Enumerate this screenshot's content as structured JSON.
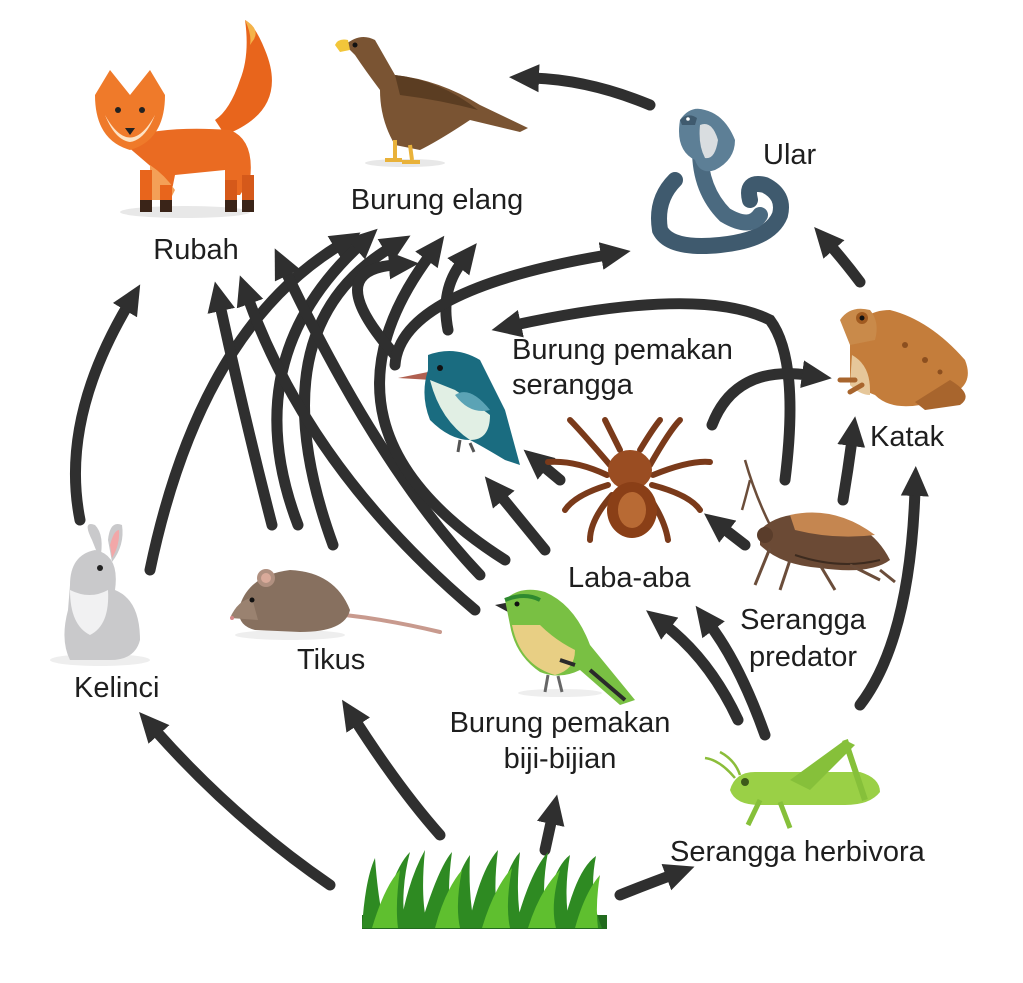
{
  "diagram": {
    "type": "food-web",
    "colors": {
      "arrow": "#2f2f2f",
      "label": "#1e1e1e",
      "background": "#ffffff"
    },
    "nodes": [
      {
        "id": "rubah",
        "label": "Rubah",
        "icon": "fox-icon"
      },
      {
        "id": "elang",
        "label": "Burung elang",
        "icon": "eagle-icon"
      },
      {
        "id": "ular",
        "label": "Ular",
        "icon": "cobra-icon"
      },
      {
        "id": "katak",
        "label": "Katak",
        "icon": "frog-icon"
      },
      {
        "id": "burung_serangga",
        "label_line1": "Burung pemakan",
        "label_line2": "serangga",
        "icon": "insectivore-bird-icon"
      },
      {
        "id": "laba",
        "label": "Laba-aba",
        "icon": "spider-icon"
      },
      {
        "id": "serangga_predator",
        "label_line1": "Serangga",
        "label_line2": "predator",
        "icon": "predatory-insect-icon"
      },
      {
        "id": "kelinci",
        "label": "Kelinci",
        "icon": "rabbit-icon"
      },
      {
        "id": "tikus",
        "label": "Tikus",
        "icon": "mouse-icon"
      },
      {
        "id": "burung_biji",
        "label_line1": "Burung pemakan",
        "label_line2": "biji-bijian",
        "icon": "seed-bird-icon"
      },
      {
        "id": "serangga_herbivora",
        "label": "Serangga herbivora",
        "icon": "grasshopper-icon"
      },
      {
        "id": "rumput",
        "label": "",
        "icon": "grass-icon"
      }
    ],
    "edges": [
      {
        "from": "rumput",
        "to": "kelinci"
      },
      {
        "from": "rumput",
        "to": "tikus"
      },
      {
        "from": "rumput",
        "to": "burung_biji"
      },
      {
        "from": "rumput",
        "to": "serangga_herbivora"
      },
      {
        "from": "kelinci",
        "to": "rubah"
      },
      {
        "from": "kelinci",
        "to": "elang"
      },
      {
        "from": "tikus",
        "to": "rubah"
      },
      {
        "from": "tikus",
        "to": "elang"
      },
      {
        "from": "burung_biji",
        "to": "rubah"
      },
      {
        "from": "burung_biji",
        "to": "elang"
      },
      {
        "from": "burung_serangga",
        "to": "elang"
      },
      {
        "from": "burung_serangga",
        "to": "ular"
      },
      {
        "from": "laba",
        "to": "burung_serangga"
      },
      {
        "from": "laba",
        "to": "katak"
      },
      {
        "from": "serangga_predator",
        "to": "laba"
      },
      {
        "from": "serangga_predator",
        "to": "burung_serangga"
      },
      {
        "from": "serangga_predator",
        "to": "katak"
      },
      {
        "from": "serangga_herbivora",
        "to": "laba"
      },
      {
        "from": "serangga_herbivora",
        "to": "serangga_predator"
      },
      {
        "from": "serangga_herbivora",
        "to": "katak"
      },
      {
        "from": "katak",
        "to": "ular"
      },
      {
        "from": "ular",
        "to": "elang"
      }
    ]
  }
}
